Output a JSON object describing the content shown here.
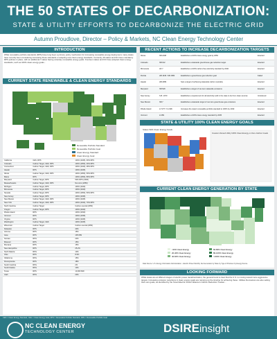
{
  "header": {
    "title": "THE 50 STATES OF DECARBONIZATION:",
    "subtitle": "STATE & UTILITY EFFORTS TO DECARBONIZE THE ELECTRIC GRID",
    "author": "Autumn Proudlove, Director – Policy & Markets, NC Clean Energy Technology Center"
  },
  "sections": {
    "intro": "INTRODUCTION",
    "standards": "CURRENT STATE RENEWABLE & CLEAN ENERGY STANDARDS",
    "recent": "RECENT ACTIONS TO INCREASE DECARBONIZATION TARGETS",
    "utility": "STATE & UTILITY 100% CLEAN ENERGY GOALS",
    "generation": "CURRENT CLEAN ENERGY GENERATION BY STATE",
    "next": "LOOKING FORWARD"
  },
  "intro_text": "While renewable portfolio standards (RPS) have long been a primary policy mechanism for increasing renewable energy deployment, many states have recently been considering increasing these standards or adopting new clean energy standards. Currently, 29 states and DC have mandatory RPS policies in place, with an additional 7 states having voluntary renewable energy goals. Fourteen states and DC have adopted clean energy standards, such as 100% clean energy goals...",
  "map_legend": [
    "Renewable Portfolio Standard",
    "Renewable Portfolio Goal",
    "Clean Energy Standard",
    "Clean Energy Goal"
  ],
  "standards_table": [
    [
      "California",
      "CES, RPS",
      "100% (2045), 60% RPS"
    ],
    [
      "Colorado",
      "Carbon Target, CES, RPS",
      "100% (2050), 30% RPS"
    ],
    [
      "Connecticut",
      "Carbon Target, CES, RPS",
      "100% (2040), 48% RPS"
    ],
    [
      "Hawaii",
      "RPS",
      "100% (2045)"
    ],
    [
      "Illinois",
      "Carbon Target, CES, RPS",
      "100% (2050), 50% RPS"
    ],
    [
      "Maine",
      "RPS",
      "100% (2050), 80% RPS"
    ],
    [
      "Maryland",
      "Carbon Target, RPS",
      "50% RPS (2030)"
    ],
    [
      "Massachusetts",
      "Carbon Target, CES, RPS",
      "Net-zero (2050)"
    ],
    [
      "Michigan",
      "Carbon Target, RPS",
      "100% (2040)"
    ],
    [
      "Minnesota",
      "Carbon Target, RPS",
      "100% (2040)"
    ],
    [
      "Nevada",
      "Carbon Target, RPS",
      "100% (2050), 50% RPS"
    ],
    [
      "New Jersey",
      "Carbon Target, RPS",
      "100% (2035)"
    ],
    [
      "New Mexico",
      "Carbon Target, CES, RPS",
      "100% (2045)"
    ],
    [
      "New York",
      "Carbon Target, CES, RPS",
      "100% (2040), 70% RPS"
    ],
    [
      "North Carolina",
      "Carbon Target",
      "Carbon-neutral (2050)"
    ],
    [
      "Oregon",
      "Carbon Target, RPS",
      "100% (2040)"
    ],
    [
      "Rhode Island",
      "RPS",
      "100% (2033)"
    ],
    [
      "Vermont",
      "RPS",
      "100% (2035)"
    ],
    [
      "Virginia",
      "RPS",
      "100% (2045)"
    ],
    [
      "Washington",
      "Carbon Target, CES",
      "100% (2045)"
    ],
    [
      "Wisconsin",
      "Carbon Target",
      "Carbon-neutral (2050)"
    ],
    [
      "Delaware",
      "RPS",
      "40%"
    ],
    [
      "Arizona",
      "RPS",
      "15%"
    ],
    [
      "Iowa",
      "RPS",
      "105 MW"
    ],
    [
      "Kansas",
      "RPG",
      "20%"
    ],
    [
      "Missouri",
      "RPS",
      "15%"
    ],
    [
      "Montana",
      "RPS",
      "15%"
    ],
    [
      "New Hampshire",
      "RPS",
      "25.2%"
    ],
    [
      "North Dakota",
      "RPG",
      "10%"
    ],
    [
      "Ohio",
      "RPS",
      "8.5%"
    ],
    [
      "Oklahoma",
      "RPG",
      "15%"
    ],
    [
      "Pennsylvania",
      "RPS",
      "18%"
    ],
    [
      "South Carolina",
      "RPG",
      "2%"
    ],
    [
      "South Dakota",
      "RPG",
      "10%"
    ],
    [
      "Texas",
      "RPS",
      "10,000 MW"
    ],
    [
      "Utah",
      "RPG",
      "20%"
    ]
  ],
  "recent_table": [
    [
      "Illinois",
      "SB 2408",
      "Establishes a 100% clean energy goal by 2050",
      "Enacted"
    ],
    [
      "Colorado",
      "SB 192",
      "Establishes a statewide greenhouse gas reduction target",
      "Enacted"
    ],
    [
      "Minnesota",
      "HF 7",
      "Establishes a 100% carbon-free electricity standard by 2040",
      "Enacted"
    ],
    [
      "Florida",
      "HB 1645 / SB 1580",
      "Establishes a greenhouse gas reduction goal",
      "Failed"
    ],
    [
      "Hawaii",
      "HB 2089",
      "Sets a target of achieving statewide carbon neutrality",
      "Enacted"
    ],
    [
      "Maryland",
      "SB 528",
      "Establishes a target of net-zero statewide emissions",
      "Enacted"
    ],
    [
      "New Jersey",
      "S.B. 1970",
      "Establishes a requirement for all electricity sold in the state to be from clean sources",
      "Introduced"
    ],
    [
      "New Mexico",
      "SB 7",
      "Establishes a statewide target of net-zero greenhouse gas emissions",
      "Enacted"
    ],
    [
      "Rhode Island",
      "H 7277 / S 2196",
      "Increases the state's renewable portfolio standard to 100% by 2033",
      "Enacted"
    ],
    [
      "Vermont",
      "H 289",
      "Establishes a 100% clean energy standard by 2035",
      "Enacted"
    ]
  ],
  "utility_legend_title": "Investor-Owned Utility 100% Clean Energy or Zero-Carbon Goals",
  "utility_map_title": "States With Clean Energy Goals",
  "generation_legend": [
    "<20% Clean Energy",
    "20-40% Clean Energy",
    "40-60% Clean Energy",
    "60-80% Clean Energy",
    "80-100% Clean Energy",
    ">100% Clean Energy"
  ],
  "generation_source": "Data Source: U.S. Energy Information Administration – Electric Power Monthly. Net Generation by State by Type of Producer by Energy Source.",
  "next_text": "While states are at different stages of electric power decarbonization, the general trend is clear that the U.S. is moving toward more aggressive targets. Increasing emission reductions in clean energy goals are ramping up the timeline for achieving these. Utilities themselves are also setting their own goals, as identified by the Smart Electric Power Alliance's Carbon Reduction Tracker...",
  "footer": {
    "org": "NC CLEAN ENERGY",
    "org_sub": "TECHNOLOGY CENTER",
    "brand": "DSIRE",
    "brand_suffix": "insight",
    "note": "CES = Clean Energy Standard, CEG = Clean Energy Goal, RPS = Renewable Portfolio Standard, RPG = Renewable Portfolio Goal"
  },
  "colors": {
    "teal": "#2b7a86",
    "green": "#3b7d3a",
    "lightgreen": "#9ccc65",
    "orange": "#e08a26",
    "blue": "#3c78c8"
  }
}
